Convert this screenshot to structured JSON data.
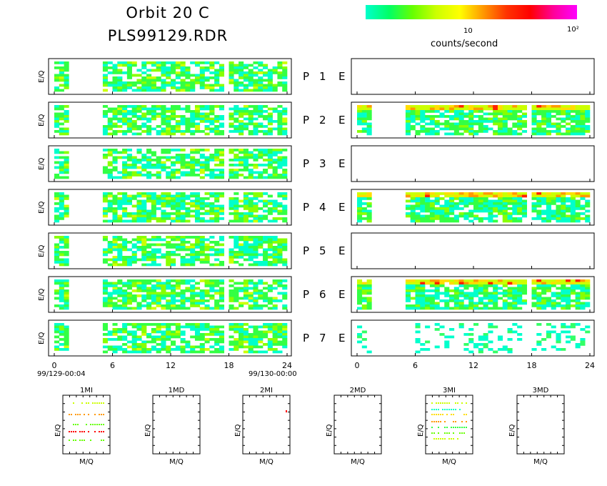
{
  "header": {
    "title": "Orbit 20 C",
    "subtitle": "PLS99129.RDR"
  },
  "colorbar": {
    "label": "counts/second",
    "tick_labels": [
      "10",
      "10²"
    ],
    "colors": [
      "#00ffcc",
      "#00ff66",
      "#66ff00",
      "#ccff00",
      "#ffff00",
      "#ff9900",
      "#ff3300",
      "#ff0000",
      "#ff0099",
      "#ff00ff"
    ]
  },
  "chart_data": [
    {
      "type": "heatmap",
      "name": "panel-grid",
      "rows": [
        {
          "left": "P",
          "num": "1",
          "right": "E",
          "left_data": true,
          "right_data": false,
          "right_intensity": "none"
        },
        {
          "left": "P",
          "num": "2",
          "right": "E",
          "left_data": true,
          "right_data": true,
          "right_intensity": "high"
        },
        {
          "left": "P",
          "num": "3",
          "right": "E",
          "left_data": true,
          "right_data": false,
          "right_intensity": "none"
        },
        {
          "left": "P",
          "num": "4",
          "right": "E",
          "left_data": true,
          "right_data": true,
          "right_intensity": "high"
        },
        {
          "left": "P",
          "num": "5",
          "right": "E",
          "left_data": true,
          "right_data": false,
          "right_intensity": "none"
        },
        {
          "left": "P",
          "num": "6",
          "right": "E",
          "left_data": true,
          "right_data": true,
          "right_intensity": "high"
        },
        {
          "left": "P",
          "num": "7",
          "right": "E",
          "left_data": true,
          "right_data": true,
          "right_intensity": "sparse"
        }
      ],
      "ylabel": "E/Q",
      "x_ticks": [
        "0",
        "6",
        "12",
        "18",
        "24"
      ],
      "xlim": [
        0,
        24
      ],
      "data_gaps_hours": [
        [
          1.7,
          4.9
        ],
        [
          17.6,
          18.2
        ]
      ],
      "start_label": "99/129-00:04",
      "end_label": "99/130-00:00"
    },
    {
      "type": "scatter",
      "name": "mass-panels",
      "xlabel": "M/Q",
      "ylabel": "E/Q",
      "panels": [
        {
          "title": "1MI",
          "has_data": true
        },
        {
          "title": "1MD",
          "has_data": false
        },
        {
          "title": "2MI",
          "has_data": true
        },
        {
          "title": "2MD",
          "has_data": false
        },
        {
          "title": "3MI",
          "has_data": true
        },
        {
          "title": "3MD",
          "has_data": false
        }
      ]
    }
  ]
}
